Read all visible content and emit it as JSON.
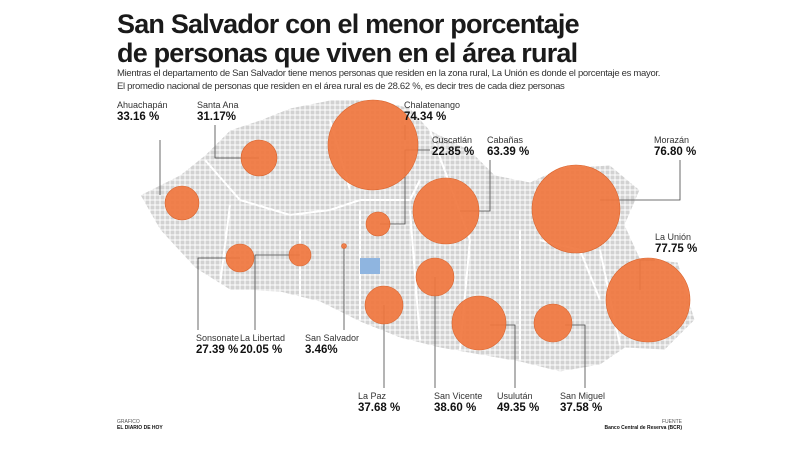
{
  "title_line1": "San Salvador con el menor porcentaje",
  "title_line2": "de personas que viven en el área rural",
  "subtitle_line1": "Mientras el departamento de San Salvador tiene menos personas que residen en la zona rural, La Unión es donde el porcentaje es mayor.",
  "subtitle_line2": "El promedio nacional de personas que residen en el área rural es de 28.62 %, es decir tres de cada diez personas",
  "colors": {
    "bubble": "#f0763e",
    "bubble_stroke": "#d9642e",
    "map": "#cfcfcf",
    "capital": "#8fb5e0"
  },
  "departments": [
    {
      "name": "Ahuachapán",
      "value": "33.16 %"
    },
    {
      "name": "Santa Ana",
      "value": "31.17%"
    },
    {
      "name": "Chalatenango",
      "value": "74.34 %"
    },
    {
      "name": "Cuscatlán",
      "value": "22.85 %"
    },
    {
      "name": "Cabañas",
      "value": "63.39 %"
    },
    {
      "name": "Morazán",
      "value": "76.80 %"
    },
    {
      "name": "La Unión",
      "value": "77.75 %"
    },
    {
      "name": "Sonsonate",
      "value": "27.39 %"
    },
    {
      "name": "La Libertad",
      "value": "20.05 %"
    },
    {
      "name": "San Salvador",
      "value": "3.46%"
    },
    {
      "name": "La Paz",
      "value": "37.68 %"
    },
    {
      "name": "San Vicente",
      "value": "38.60 %"
    },
    {
      "name": "Usulután",
      "value": "49.35 %"
    },
    {
      "name": "San Miguel",
      "value": "37.58 %"
    }
  ],
  "footer": {
    "credit_label": "GRAFICO",
    "credit": "EL DIARIO DE HOY",
    "source_label": "FUENTE",
    "source": "Banco Central de Reserva (BCR)"
  }
}
